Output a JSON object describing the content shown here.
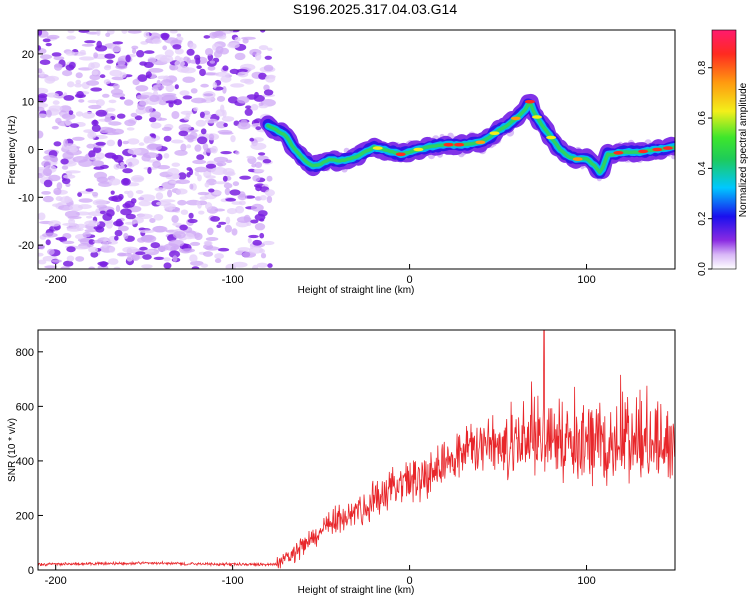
{
  "title": "S196.2025.317.04.03.G14",
  "colors": {
    "background": "#ffffff",
    "axis": "#000000",
    "snr_line": "#e8262a",
    "noise_cloud": "#7b2ee6"
  },
  "chart_data": [
    {
      "type": "heatmap",
      "name": "spectrogram",
      "xlabel": "Height of straight line (km)",
      "ylabel": "Frequency (Hz)",
      "xlim": [
        -210,
        150
      ],
      "ylim": [
        -25,
        25
      ],
      "xticks": [
        -200,
        -100,
        0,
        100
      ],
      "xtick_labels": [
        "-200",
        "-100",
        "0",
        "100"
      ],
      "yticks": [
        -20,
        -10,
        0,
        10,
        20
      ],
      "ytick_labels": [
        "-20",
        "-10",
        "0",
        "10",
        "20"
      ],
      "noise_region_x": [
        -210,
        -78
      ],
      "signal_ridge": {
        "x": [
          -80,
          -75,
          -70,
          -65,
          -60,
          -55,
          -50,
          -45,
          -40,
          -35,
          -30,
          -25,
          -20,
          -15,
          -10,
          -5,
          0,
          10,
          20,
          30,
          40,
          45,
          50,
          55,
          60,
          65,
          68,
          70,
          75,
          80,
          85,
          90,
          95,
          100,
          105,
          108,
          110,
          112,
          115,
          120,
          130,
          140,
          150
        ],
        "freq_hz": [
          5,
          4,
          3,
          0,
          -2,
          -3.5,
          -3,
          -2,
          -2.5,
          -2,
          -1.5,
          -0.5,
          0.5,
          0,
          -0.5,
          -1,
          -0.5,
          0.5,
          1,
          1,
          1.5,
          2.5,
          4,
          5,
          6.5,
          8,
          10,
          8,
          5,
          2.5,
          0,
          -1.5,
          -2,
          -2,
          -3.5,
          -5,
          -3,
          -1,
          -1,
          -0.5,
          -0.5,
          0,
          0.5
        ]
      },
      "colorbar": {
        "label": "Normalized spectral amplitude",
        "range": [
          0.0,
          0.95
        ],
        "ticks": [
          0.0,
          0.2,
          0.4,
          0.6,
          0.8
        ],
        "tick_labels": [
          "0.0",
          "0.2",
          "0.4",
          "0.6",
          "0.8"
        ]
      }
    },
    {
      "type": "line",
      "name": "snr",
      "xlabel": "Height of straight line (km)",
      "ylabel": "SNR (10 * v/v)",
      "xlim": [
        -210,
        150
      ],
      "ylim": [
        0,
        880
      ],
      "xticks": [
        -200,
        -100,
        0,
        100
      ],
      "xtick_labels": [
        "-200",
        "-100",
        "0",
        "100"
      ],
      "yticks": [
        0,
        200,
        400,
        600,
        800
      ],
      "ytick_labels": [
        "0",
        "200",
        "400",
        "600",
        "800"
      ],
      "series": [
        {
          "name": "SNR",
          "envelope_x": [
            -210,
            -150,
            -100,
            -75,
            -65,
            -55,
            -45,
            -35,
            -25,
            -15,
            -5,
            5,
            15,
            25,
            35,
            45,
            55,
            65,
            75,
            85,
            95,
            105,
            115,
            125,
            135,
            145,
            150
          ],
          "envelope_y": [
            20,
            25,
            20,
            20,
            60,
            110,
            160,
            200,
            230,
            260,
            300,
            330,
            370,
            410,
            430,
            445,
            455,
            460,
            470,
            455,
            445,
            440,
            440,
            445,
            450,
            450,
            450
          ],
          "peak_value": 880,
          "peak_x": 76
        }
      ]
    }
  ]
}
